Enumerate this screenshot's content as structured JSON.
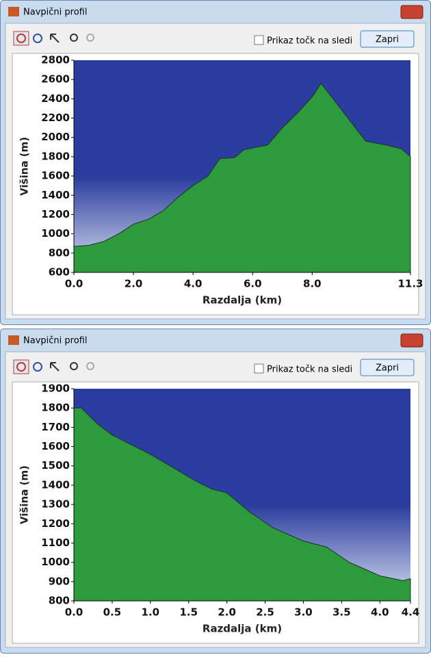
{
  "windows": [
    {
      "title": "Navpični profil",
      "checkbox": "Prikaz točk na sledi",
      "button": "Zapri"
    },
    {
      "title": "Navpični profil",
      "checkbox": "Prikaz točk na sledi",
      "button": "Zapri"
    }
  ],
  "chart_data": [
    {
      "type": "area",
      "x_label": "Razdalja  (km)",
      "y_label": "Višina (m)",
      "color": "#2e9a3e",
      "sky_color": "#2b3d9e",
      "x": [
        0,
        0.5,
        1.0,
        1.5,
        2.0,
        2.5,
        3.0,
        3.5,
        4.0,
        4.5,
        4.9,
        5.4,
        5.7,
        6.0,
        6.5,
        7.0,
        7.5,
        8.0,
        8.3,
        8.7,
        9.2,
        9.8,
        10.5,
        11.0,
        11.3
      ],
      "values": [
        870,
        880,
        920,
        1000,
        1100,
        1150,
        1240,
        1380,
        1500,
        1600,
        1780,
        1790,
        1870,
        1890,
        1920,
        2100,
        2250,
        2420,
        2560,
        2400,
        2200,
        1960,
        1920,
        1880,
        1800
      ],
      "xlim": [
        0,
        11.3
      ],
      "xticks": [
        {
          "value": 0,
          "label": "0.0"
        },
        {
          "value": 2,
          "label": "2.0"
        },
        {
          "value": 4,
          "label": "4.0"
        },
        {
          "value": 6,
          "label": "6.0"
        },
        {
          "value": 8,
          "label": "8.0"
        },
        11.3
      ],
      "ylim": [
        600,
        2800
      ],
      "yticks": [
        600,
        800,
        1000,
        1200,
        1400,
        1600,
        1800,
        2000,
        2200,
        2400,
        2600,
        2800
      ]
    },
    {
      "type": "area",
      "x_label": "Razdalja  (km)",
      "y_label": "Višina (m)",
      "color": "#2e9a3e",
      "sky_color": "#2b3d9e",
      "x": [
        0,
        0.1,
        0.3,
        0.5,
        0.7,
        1.0,
        1.3,
        1.6,
        1.8,
        2.0,
        2.3,
        2.6,
        3.0,
        3.3,
        3.6,
        4.0,
        4.3,
        4.4
      ],
      "values": [
        1800,
        1800,
        1720,
        1660,
        1620,
        1560,
        1490,
        1420,
        1380,
        1360,
        1260,
        1180,
        1110,
        1080,
        1000,
        930,
        905,
        915
      ],
      "xlim": [
        0,
        4.4
      ],
      "xticks": [
        {
          "value": 0,
          "label": "0.0"
        },
        0.5,
        {
          "value": 1,
          "label": "1.0"
        },
        1.5,
        {
          "value": 2,
          "label": "2.0"
        },
        2.5,
        {
          "value": 3,
          "label": "3.0"
        },
        3.5,
        {
          "value": 4,
          "label": "4.0"
        },
        4.4
      ],
      "ylim": [
        800,
        1900
      ],
      "yticks": [
        800,
        900,
        1000,
        1100,
        1200,
        1300,
        1400,
        1500,
        1600,
        1700,
        1800,
        1900
      ]
    }
  ]
}
